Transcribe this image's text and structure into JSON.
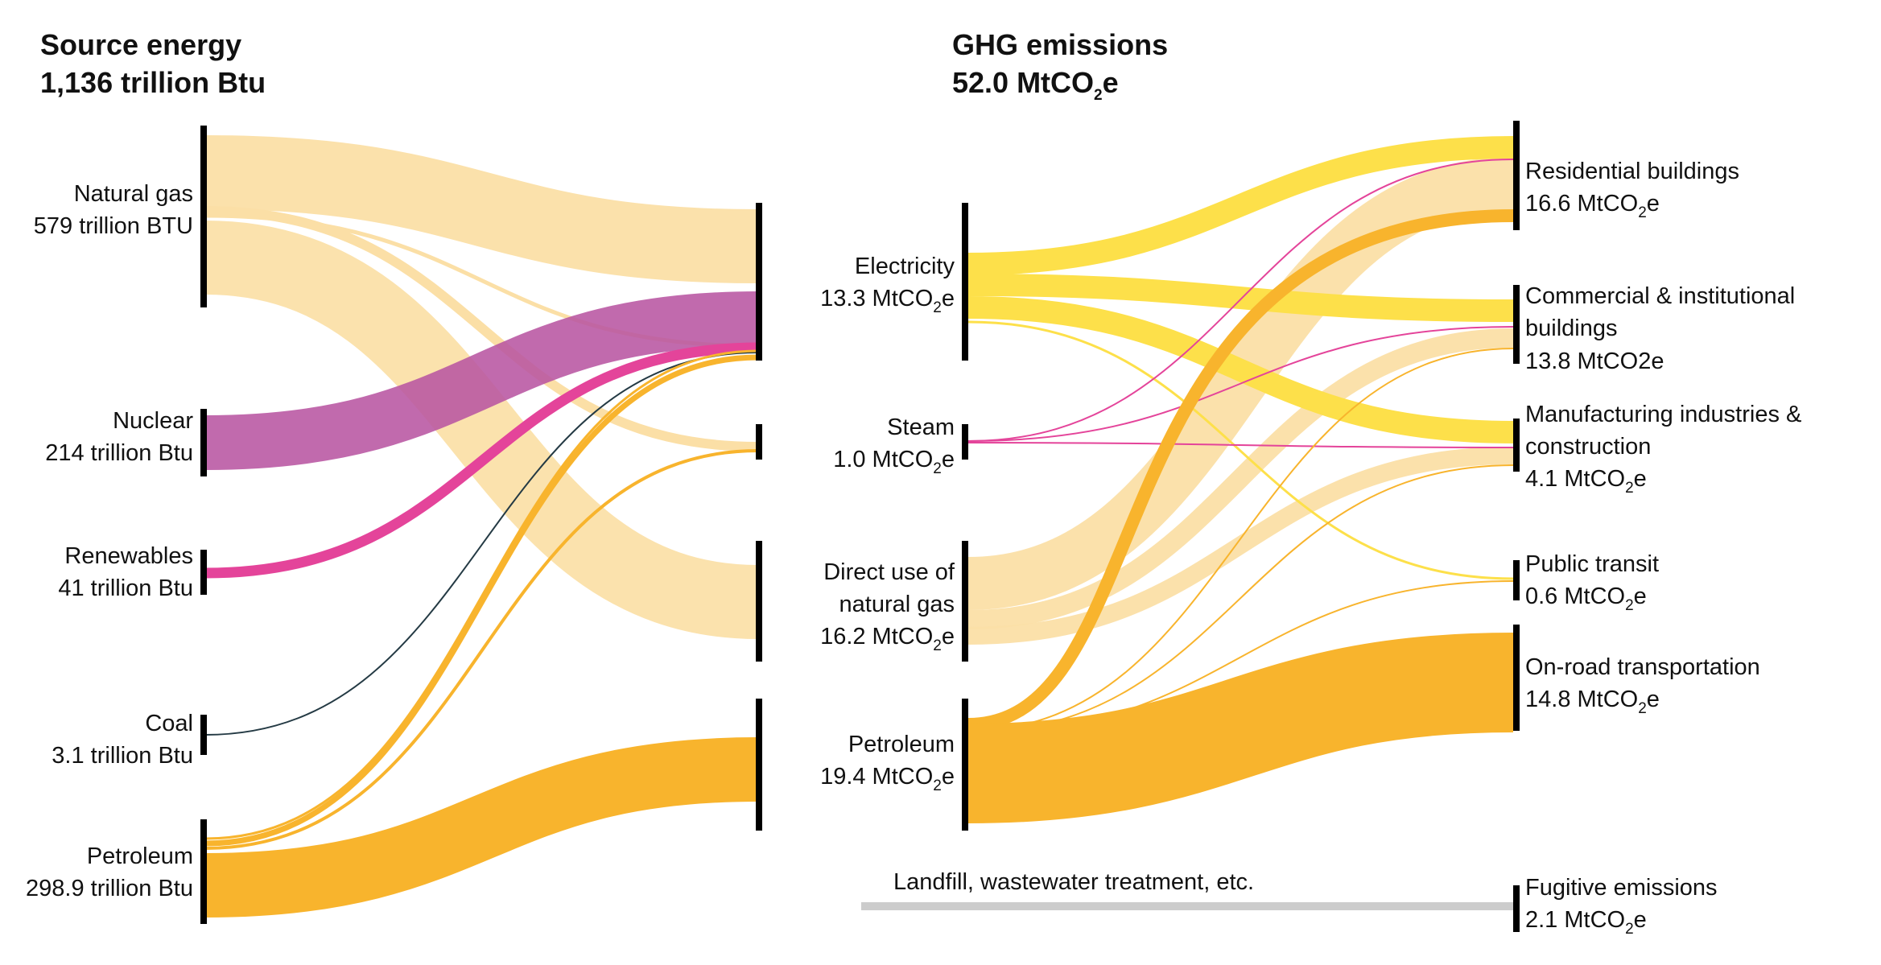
{
  "colors": {
    "natural_gas": "#fbdfa6",
    "nuclear": "#b855a2",
    "renewables": "#e4449a",
    "coal": "#243a44",
    "petroleum": "#f8b42d",
    "electricity": "#fde04a",
    "steam": "#e4449a",
    "fugitive": "#cccccc"
  },
  "source_panel": {
    "title": "Source energy",
    "total": "1,136 trillion Btu",
    "nodes": [
      {
        "name": "Natural gas",
        "value": "579 trillion BTU"
      },
      {
        "name": "Nuclear",
        "value": "214 trillion Btu"
      },
      {
        "name": "Renewables",
        "value": "41 trillion Btu"
      },
      {
        "name": "Coal",
        "value": "3.1 trillion Btu"
      },
      {
        "name": "Petroleum",
        "value": "298.9 trillion Btu"
      }
    ]
  },
  "ghg_panel": {
    "title": "GHG emissions",
    "total": {
      "pre": "52.0 MtCO",
      "sub": "2",
      "post": "e"
    },
    "nodes": [
      {
        "name": "Electricity",
        "pre": "13.3 MtCO",
        "sub": "2",
        "post": "e"
      },
      {
        "name": "Steam",
        "pre": "1.0 MtCO",
        "sub": "2",
        "post": "e"
      },
      {
        "name1": "Direct use of",
        "name2": "natural gas",
        "pre": "16.2 MtCO",
        "sub": "2",
        "post": "e"
      },
      {
        "name": "Petroleum",
        "pre": "19.4 MtCO",
        "sub": "2",
        "post": "e"
      }
    ],
    "fugitive_note": "Landfill, wastewater treatment, etc."
  },
  "sectors": [
    {
      "line1": "Residential buildings",
      "pre": "16.6 MtCO",
      "sub": "2",
      "post": "e"
    },
    {
      "line1": "Commercial & institutional",
      "line2": "buildings",
      "plain": "13.8 MtCO2e"
    },
    {
      "line1": "Manufacturing industries &",
      "line2": "construction",
      "pre": "4.1 MtCO",
      "sub": "2",
      "post": "e"
    },
    {
      "line1": "Public transit",
      "pre": "0.6 MtCO",
      "sub": "2",
      "post": "e"
    },
    {
      "line1": "On-road transportation",
      "pre": "14.8 MtCO",
      "sub": "2",
      "post": "e"
    },
    {
      "line1": "Fugitive emissions",
      "pre": "2.1 MtCO",
      "sub": "2",
      "post": "e"
    }
  ]
}
